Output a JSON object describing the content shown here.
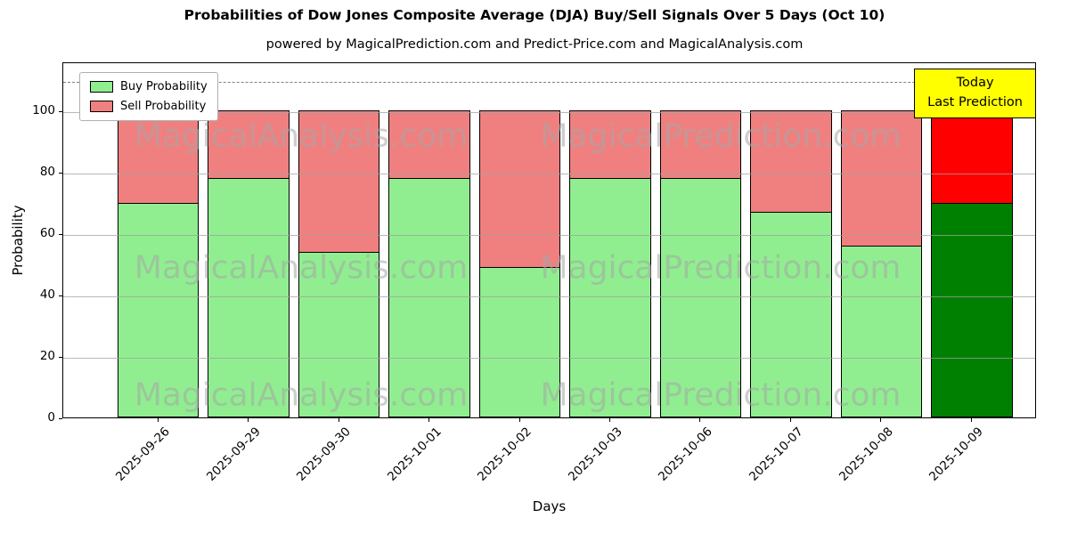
{
  "title": "Probabilities of Dow Jones Composite Average (DJA) Buy/Sell Signals Over 5 Days (Oct 10)",
  "subtitle": "powered by MagicalPrediction.com and Predict-Price.com and MagicalAnalysis.com",
  "chart_data": {
    "type": "bar",
    "stacked": true,
    "categories": [
      "2025-09-26",
      "2025-09-29",
      "2025-09-30",
      "2025-10-01",
      "2025-10-02",
      "2025-10-03",
      "2025-10-06",
      "2025-10-07",
      "2025-10-08",
      "2025-10-09"
    ],
    "series": [
      {
        "name": "Buy Probability",
        "values": [
          70,
          78,
          54,
          78,
          49,
          78,
          78,
          67,
          56,
          70
        ],
        "color": "#90ee90",
        "last_color": "#008000"
      },
      {
        "name": "Sell Probability",
        "values": [
          30,
          22,
          46,
          22,
          51,
          22,
          22,
          33,
          44,
          30
        ],
        "color": "#f08080",
        "last_color": "#ff0000"
      }
    ],
    "xlabel": "Days",
    "ylabel": "Probability",
    "yticks": [
      0,
      20,
      40,
      60,
      80,
      100
    ],
    "ylim": [
      0,
      116
    ],
    "dashed_line_y": 110,
    "bar_edge_color": "#000000",
    "grid": true,
    "legend_position": "upper-left"
  },
  "annotation": {
    "line1": "Today",
    "line2": "Last Prediction",
    "bg_color": "#ffff00"
  },
  "watermarks": {
    "left": "MagicalAnalysis.com",
    "right": "MagicalPrediction.com"
  }
}
